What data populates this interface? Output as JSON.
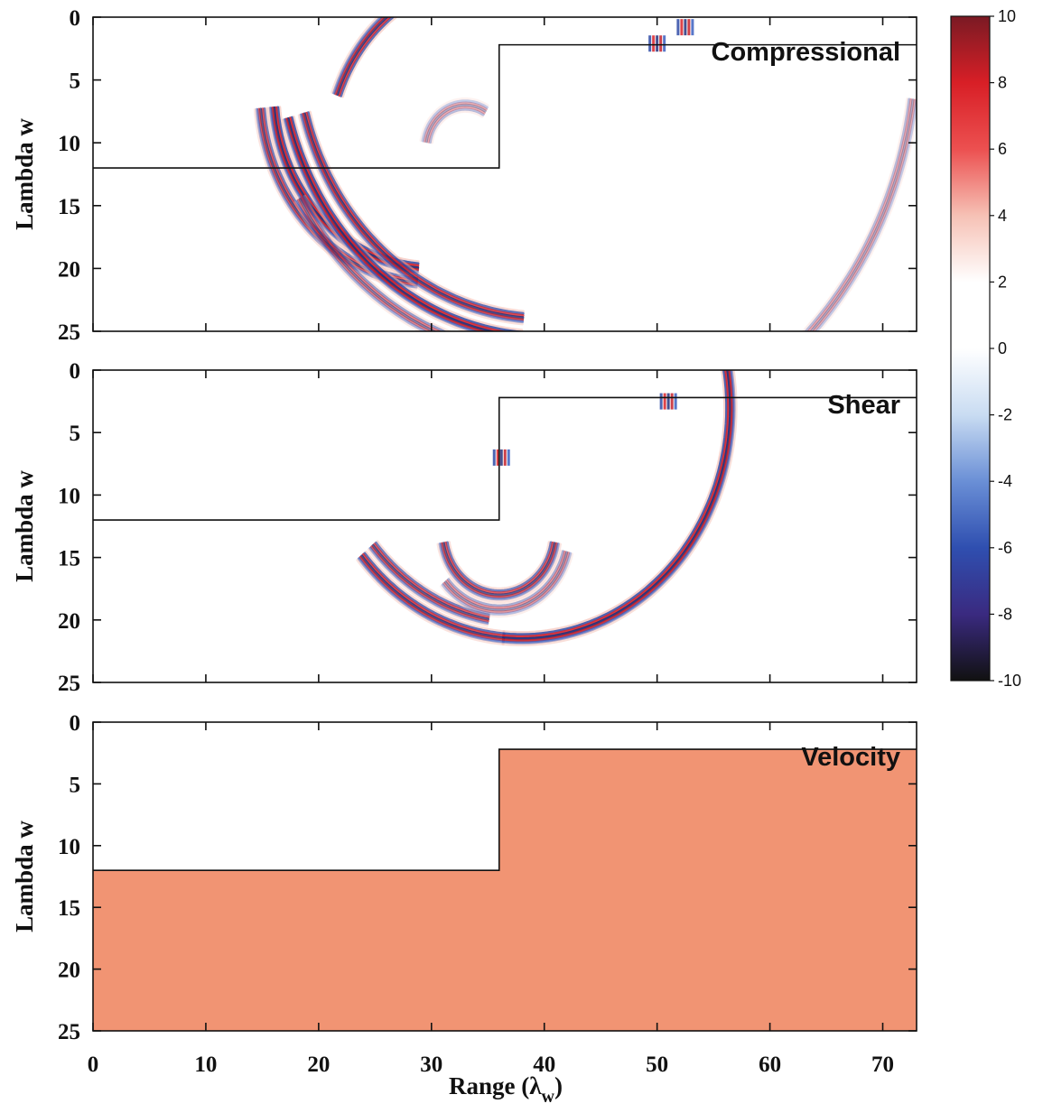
{
  "chart_data": [
    {
      "type": "heatmap",
      "panel_label": "Compressional",
      "ylabel": "Lambda w",
      "xlim": [
        0,
        73
      ],
      "ylim": [
        0,
        25
      ],
      "y_inverted": true,
      "yticks": [
        0,
        5,
        10,
        15,
        20,
        25
      ],
      "xticks": [
        0,
        10,
        20,
        30,
        40,
        50,
        60,
        70
      ],
      "boundary": [
        [
          0,
          12
        ],
        [
          36,
          12
        ],
        [
          36,
          2.2
        ],
        [
          73,
          2.2
        ]
      ],
      "wavefronts": [
        {
          "cx": 30,
          "cy": 6,
          "r": 14,
          "a0": 95,
          "a1": 175,
          "strength": 10
        },
        {
          "cx": 30,
          "cy": 6,
          "r": 15.2,
          "a0": 95,
          "a1": 175,
          "strength": 8
        },
        {
          "cx": 35,
          "cy": 11,
          "r": 14.2,
          "a0": 200,
          "a1": 250,
          "strength": 9
        },
        {
          "cx": 33,
          "cy": 10.5,
          "r": 3.5,
          "a0": 190,
          "a1": 300,
          "strength": 4
        },
        {
          "cx": 40,
          "cy": 2,
          "r": 23.5,
          "a0": 95,
          "a1": 165,
          "strength": 10
        },
        {
          "cx": 40,
          "cy": 2,
          "r": 22,
          "a0": 95,
          "a1": 165,
          "strength": 9
        },
        {
          "cx": 40,
          "cy": 2,
          "r": 25,
          "a0": 100,
          "a1": 150,
          "strength": 6
        },
        {
          "cx": 40,
          "cy": 2,
          "r": 33,
          "a0": 8,
          "a1": 50,
          "strength": 4
        }
      ],
      "hotspots": [
        {
          "x": 52.5,
          "y": 0.8,
          "strength": 9
        },
        {
          "x": 50,
          "y": 2.1,
          "strength": 7
        }
      ]
    },
    {
      "type": "heatmap",
      "panel_label": "Shear",
      "ylabel": "Lambda w",
      "xlim": [
        0,
        73
      ],
      "ylim": [
        0,
        25
      ],
      "y_inverted": true,
      "yticks": [
        0,
        5,
        10,
        15,
        20,
        25
      ],
      "xticks": [
        0,
        10,
        20,
        30,
        40,
        50,
        60,
        70
      ],
      "boundary": [
        [
          0,
          12
        ],
        [
          36,
          12
        ],
        [
          36,
          2.2
        ],
        [
          73,
          2.2
        ]
      ],
      "wavefronts": [
        {
          "cx": 38,
          "cy": 3,
          "r": 18.5,
          "a0": -10,
          "a1": 95,
          "strength": 10
        },
        {
          "cx": 38,
          "cy": 3,
          "r": 18.5,
          "a0": 95,
          "a1": 140,
          "strength": 9
        },
        {
          "cx": 38,
          "cy": 3,
          "r": 17.2,
          "a0": 100,
          "a1": 140,
          "strength": 8
        },
        {
          "cx": 36,
          "cy": 13,
          "r": 5,
          "a0": 10,
          "a1": 170,
          "strength": 8
        },
        {
          "cx": 36,
          "cy": 13,
          "r": 6.2,
          "a0": 15,
          "a1": 140,
          "strength": 5
        }
      ],
      "hotspots": [
        {
          "x": 51,
          "y": 2.5,
          "strength": 7
        },
        {
          "x": 36.2,
          "y": 7,
          "strength": 6
        }
      ]
    },
    {
      "type": "heatmap",
      "panel_label": "Velocity",
      "ylabel": "Lambda w",
      "xlabel": "Range (λw)",
      "xlim": [
        0,
        73
      ],
      "ylim": [
        0,
        25
      ],
      "y_inverted": true,
      "yticks": [
        0,
        5,
        10,
        15,
        20,
        25
      ],
      "xticks": [
        0,
        10,
        20,
        30,
        40,
        50,
        60,
        70
      ],
      "boundary": [
        [
          0,
          12
        ],
        [
          36,
          12
        ],
        [
          36,
          2.2
        ],
        [
          73,
          2.2
        ]
      ],
      "fill_color": "#f19473"
    }
  ],
  "colorbar": {
    "min": -10,
    "max": 10,
    "ticks": [
      "10",
      "8",
      "6",
      "4",
      "2",
      "0",
      "-2",
      "-4",
      "-6",
      "-8",
      "-10"
    ],
    "stops": [
      "#111111",
      "#3a2a80",
      "#2f4fb0",
      "#6a8fd6",
      "#c9dcf2",
      "#ffffff",
      "#ffffff",
      "#f6c1b5",
      "#ec5050",
      "#d81f26",
      "#7a1a24"
    ]
  },
  "xaxis": {
    "label_main": "Range (λ",
    "label_sub": "w",
    "label_close": ")",
    "ticks": [
      "0",
      "10",
      "20",
      "30",
      "40",
      "50",
      "60",
      "70"
    ]
  },
  "yaxis": {
    "label": "Lambda w",
    "ticks": [
      "0",
      "5",
      "10",
      "15",
      "20",
      "25"
    ]
  }
}
